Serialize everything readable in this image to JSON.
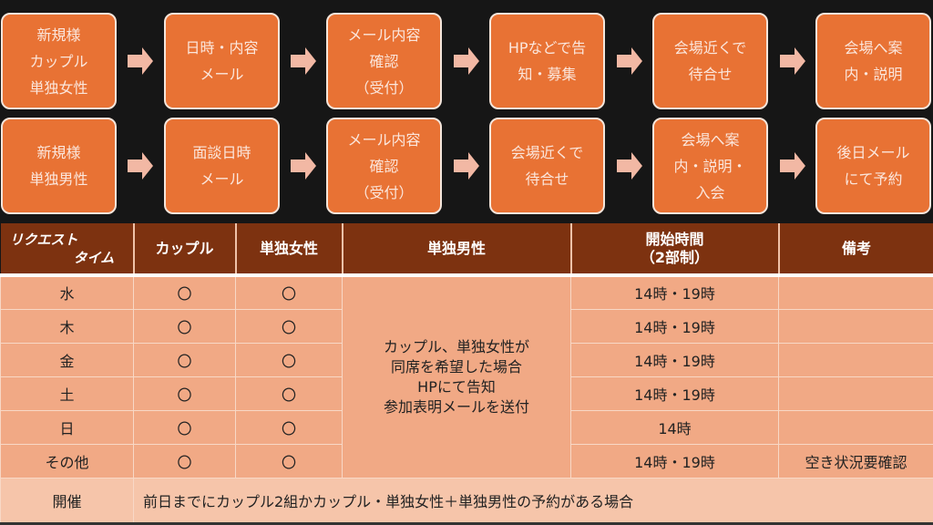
{
  "flow": {
    "row1": [
      "新規様\nカップル\n単独女性",
      "日時・内容\nメール",
      "メール内容\n確認\n（受付）",
      "HPなどで告\n知・募集",
      "会場近くで\n待合せ",
      "会場へ案\n内・説明"
    ],
    "row2": [
      "新規様\n単独男性",
      "面談日時\nメール",
      "メール内容\n確認\n（受付）",
      "会場近くで\n待合せ",
      "会場へ案\n内・説明・\n入会",
      "後日メール\nにて予約"
    ],
    "arrow_icon": "right-arrow-icon"
  },
  "table": {
    "logo": [
      "リクエスト",
      "タイム"
    ],
    "headers": [
      "カップル",
      "単独女性",
      "単独男性",
      "開始時間\n（2部制）",
      "備考"
    ],
    "rows": [
      {
        "day": "水",
        "couple": "〇",
        "female": "〇",
        "time": "14時・19時",
        "note": ""
      },
      {
        "day": "木",
        "couple": "〇",
        "female": "〇",
        "time": "14時・19時",
        "note": ""
      },
      {
        "day": "金",
        "couple": "〇",
        "female": "〇",
        "time": "14時・19時",
        "note": ""
      },
      {
        "day": "土",
        "couple": "〇",
        "female": "〇",
        "time": "14時・19時",
        "note": ""
      },
      {
        "day": "日",
        "couple": "〇",
        "female": "〇",
        "time": "14時",
        "note": ""
      },
      {
        "day": "その他",
        "couple": "〇",
        "female": "〇",
        "time": "14時・19時",
        "note": "空き状況要確認"
      }
    ],
    "male_note": "カップル、単独女性が\n同席を希望した場合\nHPにて告知\n参加表明メールを送付",
    "footer": {
      "label": "開催",
      "text": "前日までにカップル2組かカップル・単独女性＋単独男性の予約がある場合"
    }
  },
  "colors": {
    "box": "#e87234",
    "arrow": "#f2b8a4",
    "header": "#7d3210",
    "cell": "#f1a985",
    "footer": "#f6c5aa"
  }
}
